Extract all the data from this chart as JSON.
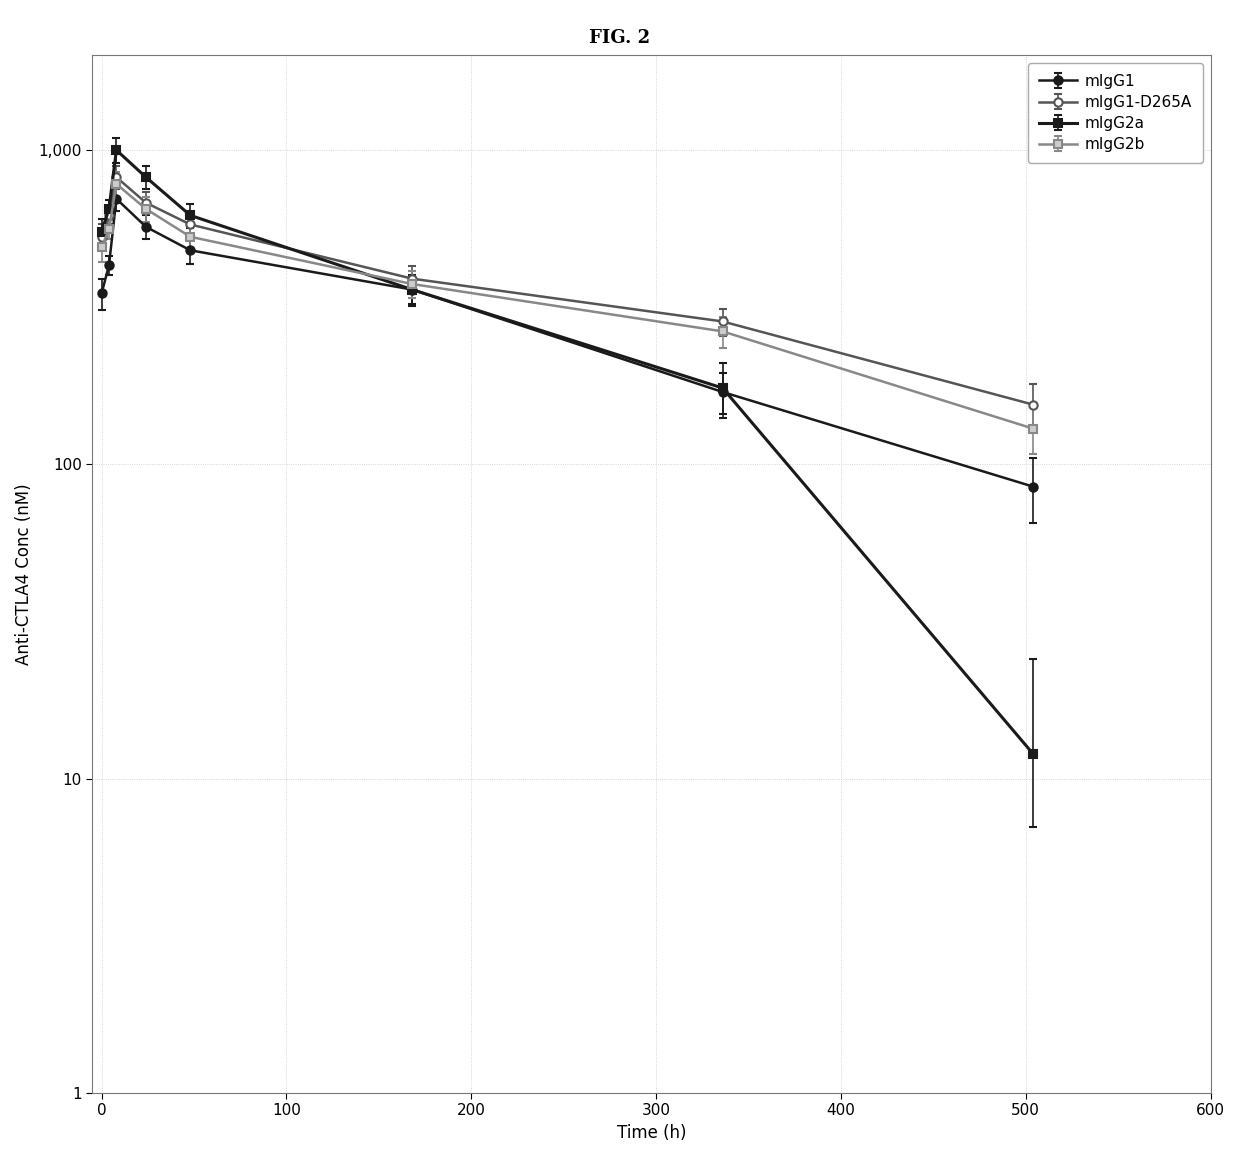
{
  "title": "FIG. 2",
  "xlabel": "Time (h)",
  "ylabel": "Anti-CTLA4 Conc (nM)",
  "series": [
    {
      "label": "mIgG1",
      "color": "#1a1a1a",
      "marker": "o",
      "marker_face": "#1a1a1a",
      "linestyle": "-",
      "linewidth": 1.8,
      "x": [
        0,
        4,
        8,
        24,
        48,
        168,
        336,
        504
      ],
      "y": [
        350,
        430,
        700,
        570,
        480,
        360,
        170,
        85
      ],
      "yerr_lo": [
        40,
        30,
        60,
        50,
        45,
        35,
        25,
        20
      ],
      "yerr_hi": [
        40,
        30,
        60,
        50,
        45,
        35,
        25,
        20
      ]
    },
    {
      "label": "mIgG1-D265A",
      "color": "#555555",
      "marker": "o",
      "marker_face": "#ffffff",
      "linestyle": "-",
      "linewidth": 1.8,
      "x": [
        0,
        4,
        8,
        24,
        48,
        168,
        336,
        504
      ],
      "y": [
        530,
        620,
        820,
        680,
        580,
        390,
        285,
        155
      ],
      "yerr_lo": [
        50,
        40,
        70,
        55,
        50,
        38,
        28,
        25
      ],
      "yerr_hi": [
        50,
        40,
        70,
        55,
        50,
        38,
        28,
        25
      ]
    },
    {
      "label": "mIgG2a",
      "color": "#1a1a1a",
      "marker": "s",
      "marker_face": "#1a1a1a",
      "linestyle": "-",
      "linewidth": 2.2,
      "x": [
        0,
        4,
        8,
        24,
        48,
        168,
        336,
        504
      ],
      "y": [
        550,
        650,
        1000,
        820,
        620,
        360,
        175,
        12
      ],
      "yerr_lo": [
        55,
        45,
        90,
        70,
        55,
        40,
        35,
        5
      ],
      "yerr_hi": [
        55,
        45,
        90,
        70,
        55,
        40,
        35,
        12
      ]
    },
    {
      "label": "mIgG2b",
      "color": "#888888",
      "marker": "s",
      "marker_face": "#cccccc",
      "linestyle": "-",
      "linewidth": 1.8,
      "x": [
        0,
        4,
        8,
        24,
        48,
        168,
        336,
        504
      ],
      "y": [
        490,
        560,
        780,
        650,
        530,
        375,
        265,
        130
      ],
      "yerr_lo": [
        48,
        38,
        72,
        58,
        48,
        36,
        30,
        22
      ],
      "yerr_hi": [
        48,
        38,
        72,
        58,
        48,
        36,
        30,
        22
      ]
    }
  ],
  "xlim": [
    -5,
    600
  ],
  "ylim_log": [
    1,
    2000
  ],
  "xticks": [
    0,
    100,
    200,
    300,
    400,
    500,
    600
  ],
  "yticks_log": [
    1,
    10,
    100,
    1000
  ],
  "ytick_labels": [
    "1",
    "10",
    "100",
    "1,000"
  ],
  "background_color": "#ffffff",
  "plot_bg": "#ffffff",
  "title_fontsize": 13,
  "label_fontsize": 12,
  "tick_fontsize": 11,
  "legend_fontsize": 11
}
